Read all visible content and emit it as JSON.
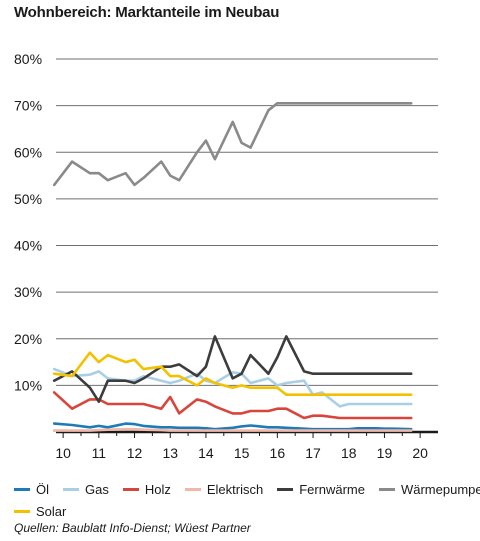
{
  "title": "Wohnbereich: Marktanteile im Neubau",
  "source": "Quellen: Baublatt Info-Dienst; Wüest Partner",
  "chart_data": {
    "type": "line",
    "title": "Wohnbereich: Marktanteile im Neubau",
    "xlabel": "",
    "ylabel": "",
    "x_ticks": [
      "10",
      "11",
      "12",
      "13",
      "14",
      "15",
      "16",
      "17",
      "18",
      "19",
      "20"
    ],
    "y_ticks": [
      "10%",
      "20%",
      "30%",
      "40%",
      "50%",
      "60%",
      "70%",
      "80%"
    ],
    "xlim": [
      2009.8,
      2020.5
    ],
    "ylim": [
      0,
      80
    ],
    "grid": true,
    "legend_position": "bottom",
    "x": [
      2009.75,
      2010.25,
      2010.75,
      2011.0,
      2011.25,
      2011.75,
      2012.0,
      2012.25,
      2012.75,
      2013.0,
      2013.25,
      2013.75,
      2014.0,
      2014.25,
      2014.75,
      2015.0,
      2015.25,
      2015.75,
      2016.0,
      2016.25,
      2016.75,
      2017.0,
      2017.25,
      2017.75,
      2018.0,
      2018.25,
      2018.75,
      2019.0,
      2019.25,
      2019.75
    ],
    "series": [
      {
        "name": "Öl",
        "color": "#1f7ab8",
        "values": [
          1.8,
          1.5,
          1.0,
          1.3,
          1.0,
          1.8,
          1.7,
          1.3,
          1.0,
          1.0,
          0.9,
          0.9,
          0.8,
          0.6,
          0.9,
          1.2,
          1.4,
          1.0,
          1.0,
          0.9,
          0.7,
          0.6,
          0.6,
          0.6,
          0.6,
          0.8,
          0.8,
          0.7,
          0.7,
          0.6
        ]
      },
      {
        "name": "Gas",
        "color": "#a9cfe6",
        "values": [
          13.5,
          12.0,
          12.3,
          13.0,
          11.5,
          11.0,
          11.0,
          12.0,
          11.0,
          10.5,
          11.0,
          12.5,
          11.0,
          10.5,
          12.8,
          12.5,
          10.5,
          11.5,
          10.0,
          10.5,
          11.0,
          8.0,
          8.5,
          5.5,
          6.0,
          6.0,
          6.0,
          6.0,
          6.0,
          6.0
        ]
      },
      {
        "name": "Holz",
        "color": "#d9453a",
        "values": [
          8.5,
          5.0,
          7.0,
          7.0,
          6.0,
          6.0,
          6.0,
          6.0,
          5.0,
          7.5,
          4.0,
          7.0,
          6.5,
          5.5,
          4.0,
          4.0,
          4.5,
          4.5,
          5.0,
          5.0,
          3.0,
          3.5,
          3.5,
          3.0,
          3.0,
          3.0,
          3.0,
          3.0,
          3.0,
          3.0
        ]
      },
      {
        "name": "Elektrisch",
        "color": "#f0b8a8",
        "values": [
          0.3,
          0.3,
          0.3,
          0.4,
          0.5,
          0.6,
          0.6,
          0.5,
          0.4,
          0.3,
          0.3,
          0.3,
          0.3,
          0.3,
          0.3,
          0.3,
          0.3,
          0.3,
          0.3,
          0.3,
          0.3,
          0.3,
          0.3,
          0.3,
          0.3,
          0.3,
          0.3,
          0.3,
          0.3,
          0.3
        ]
      },
      {
        "name": "Fernwärme",
        "color": "#3c3c3c",
        "values": [
          11.0,
          13.0,
          9.5,
          6.5,
          11.0,
          11.0,
          10.5,
          11.5,
          14.0,
          14.0,
          14.5,
          12.0,
          14.0,
          20.5,
          11.5,
          12.5,
          16.5,
          12.5,
          16.0,
          20.5,
          13.0,
          12.5,
          12.5,
          12.5,
          12.5,
          12.5,
          12.5,
          12.5,
          12.5,
          12.5
        ]
      },
      {
        "name": "Wärmepumpe",
        "color": "#8a8a8a",
        "values": [
          53.0,
          58.0,
          55.5,
          55.5,
          54.0,
          55.5,
          53.0,
          54.5,
          58.0,
          55.0,
          54.0,
          60.0,
          62.5,
          58.5,
          66.5,
          62.0,
          61.0,
          69.0,
          70.5,
          70.5,
          70.5,
          70.5,
          70.5,
          70.5,
          70.5,
          70.5,
          70.5,
          70.5,
          70.5,
          70.5
        ]
      },
      {
        "name": "Solar",
        "color": "#f2c200",
        "values": [
          12.5,
          12.0,
          17.0,
          15.0,
          16.5,
          15.0,
          15.5,
          13.5,
          14.0,
          12.0,
          12.0,
          10.0,
          11.5,
          10.5,
          9.5,
          10.0,
          9.5,
          9.5,
          9.5,
          8.0,
          8.0,
          8.0,
          8.0,
          8.0,
          8.0,
          8.0,
          8.0,
          8.0,
          8.0,
          8.0
        ]
      }
    ]
  }
}
